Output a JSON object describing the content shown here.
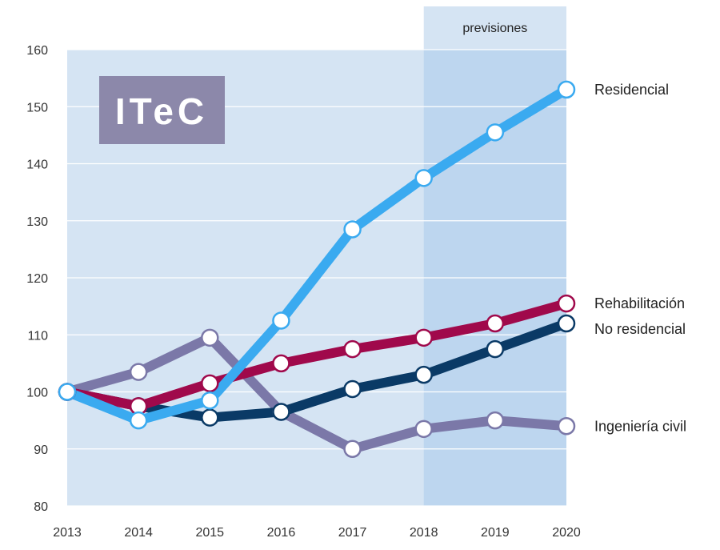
{
  "logo": {
    "text": "ITeC",
    "color": "#8c88aa"
  },
  "chart_data": {
    "type": "line",
    "title": "",
    "xlabel": "",
    "ylabel": "",
    "categories": [
      "2013",
      "2014",
      "2015",
      "2016",
      "2017",
      "2018",
      "2019",
      "2020"
    ],
    "ylim": [
      80,
      160
    ],
    "yticks": [
      "80",
      "90",
      "100",
      "110",
      "120",
      "130",
      "140",
      "150",
      "160"
    ],
    "grid": true,
    "forecast": {
      "label": "previsiones",
      "from": "2018",
      "to": "2020"
    },
    "series": [
      {
        "name": "Residencial",
        "color": "#3aaaf0",
        "values": [
          100,
          95,
          98.5,
          112.5,
          128.5,
          137.5,
          145.5,
          153
        ]
      },
      {
        "name": "Rehabilitación",
        "color": "#a0094b",
        "values": [
          100,
          97.5,
          101.5,
          105,
          107.5,
          109.5,
          112,
          115.5
        ]
      },
      {
        "name": "No residencial",
        "color": "#0a3a66",
        "values": [
          100,
          97.5,
          95.5,
          96.5,
          100.5,
          103,
          107.5,
          112
        ]
      },
      {
        "name": "Ingeniería civil",
        "color": "#7b78a8",
        "values": [
          100,
          103.5,
          109.5,
          96.5,
          90,
          93.5,
          95,
          94
        ]
      }
    ]
  }
}
